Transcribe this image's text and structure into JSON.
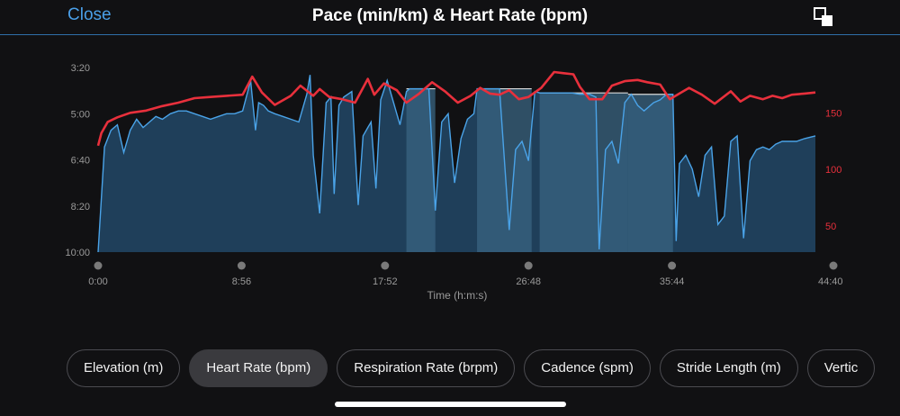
{
  "header": {
    "close_label": "Close",
    "title": "Pace (min/km) & Heart Rate (bpm)"
  },
  "icons": {
    "expand": "expand-icon"
  },
  "colors": {
    "pace_line": "#4aa3e8",
    "pace_fill": "#1f3f5a",
    "hr_line": "#e8303c",
    "interval_band": "#3a6482",
    "background": "#111113"
  },
  "tabs": [
    {
      "label": "Elevation (m)",
      "active": false
    },
    {
      "label": "Heart Rate (bpm)",
      "active": true
    },
    {
      "label": "Respiration Rate (brpm)",
      "active": false
    },
    {
      "label": "Cadence (spm)",
      "active": false
    },
    {
      "label": "Stride Length (m)",
      "active": false
    },
    {
      "label": "Vertic",
      "active": false
    }
  ],
  "chart_data": {
    "type": "area",
    "title": "Pace (min/km) & Heart Rate (bpm)",
    "xlabel": "Time (h:m:s)",
    "x_ticks": [
      "0:00",
      "8:56",
      "17:52",
      "26:48",
      "35:44",
      "44:40"
    ],
    "xlim": [
      0,
      44.67
    ],
    "y_left": {
      "label": "Pace (min/km)",
      "ticks": [
        "3:20",
        "5:00",
        "6:40",
        "8:20",
        "10:00"
      ],
      "range_min": [
        3.333,
        10.0
      ],
      "inverted": true
    },
    "y_right": {
      "label": "Heart Rate (bpm)",
      "ticks": [
        150,
        100,
        50
      ],
      "range": [
        27,
        190
      ]
    },
    "intervals": [
      {
        "start": 19.2,
        "end": 21.0,
        "pace": 4.1
      },
      {
        "start": 23.6,
        "end": 27.0,
        "pace": 4.1
      },
      {
        "start": 27.5,
        "end": 33.0,
        "pace": 4.25
      },
      {
        "start": 33.0,
        "end": 35.8,
        "pace": 4.3
      }
    ],
    "series": [
      {
        "name": "Pace (min/km)",
        "axis": "left",
        "x": [
          0,
          0.4,
          0.8,
          1.2,
          1.6,
          2.0,
          2.4,
          2.8,
          3.2,
          3.6,
          4.0,
          4.5,
          5.0,
          5.5,
          6.0,
          6.5,
          7.0,
          7.5,
          8.0,
          8.5,
          9.0,
          9.5,
          9.8,
          10.0,
          10.3,
          10.6,
          11.0,
          11.5,
          12.0,
          12.5,
          13.0,
          13.2,
          13.4,
          13.8,
          14.2,
          14.5,
          14.7,
          15.0,
          15.3,
          15.8,
          16.2,
          16.5,
          16.8,
          17.0,
          17.3,
          17.6,
          18.0,
          18.4,
          18.8,
          19.2,
          19.4,
          20.0,
          20.6,
          21.0,
          21.4,
          21.8,
          22.2,
          22.6,
          23.0,
          23.4,
          23.6,
          24.0,
          24.5,
          25.0,
          25.6,
          26.0,
          26.4,
          26.8,
          27.2,
          27.5,
          28.0,
          28.5,
          29.0,
          29.5,
          30.0,
          30.6,
          31.0,
          31.2,
          31.6,
          32.0,
          32.4,
          32.8,
          33.2,
          33.6,
          34.0,
          34.6,
          35.0,
          35.4,
          35.8,
          36.0,
          36.2,
          36.6,
          37.0,
          37.4,
          37.8,
          38.2,
          38.6,
          39.0,
          39.4,
          39.8,
          40.2,
          40.6,
          41.0,
          41.4,
          41.8,
          42.2,
          42.6,
          43.0,
          43.5,
          44.0,
          44.67
        ],
        "values": [
          10.0,
          6.2,
          5.6,
          5.4,
          6.4,
          5.6,
          5.2,
          5.5,
          5.3,
          5.1,
          5.2,
          5.0,
          4.9,
          4.9,
          5.0,
          5.1,
          5.2,
          5.1,
          5.0,
          5.0,
          4.9,
          3.8,
          5.6,
          4.6,
          4.7,
          4.9,
          5.0,
          5.1,
          5.2,
          5.3,
          4.3,
          3.6,
          6.5,
          8.6,
          4.6,
          4.4,
          7.9,
          4.7,
          4.4,
          4.2,
          8.3,
          5.8,
          5.5,
          5.3,
          7.7,
          4.5,
          3.8,
          4.6,
          5.4,
          4.2,
          4.1,
          4.1,
          4.1,
          8.5,
          5.3,
          5.0,
          7.5,
          5.9,
          5.2,
          5.0,
          4.1,
          4.1,
          4.1,
          4.1,
          9.2,
          6.3,
          6.0,
          6.7,
          4.2,
          4.25,
          4.25,
          4.25,
          4.25,
          4.25,
          4.3,
          4.3,
          4.4,
          9.9,
          6.3,
          6.0,
          6.8,
          4.6,
          4.3,
          4.7,
          4.9,
          4.6,
          4.5,
          4.3,
          4.3,
          9.6,
          6.8,
          6.5,
          7.0,
          8.0,
          6.5,
          6.2,
          9.0,
          8.7,
          6.0,
          5.8,
          9.5,
          6.7,
          6.3,
          6.2,
          6.3,
          6.1,
          6.0,
          6.0,
          6.0,
          5.9,
          5.8
        ]
      },
      {
        "name": "Heart Rate (bpm)",
        "axis": "right",
        "x": [
          0,
          0.2,
          0.6,
          1.2,
          2.0,
          3.0,
          4.0,
          5.0,
          6.0,
          7.0,
          8.0,
          9.0,
          9.6,
          10.2,
          11.0,
          12.0,
          12.6,
          13.4,
          13.8,
          14.4,
          15.2,
          16.0,
          16.8,
          17.2,
          17.8,
          18.6,
          19.2,
          20.0,
          20.8,
          21.6,
          22.4,
          23.2,
          23.8,
          24.4,
          25.0,
          25.6,
          26.2,
          26.8,
          27.6,
          28.4,
          29.0,
          29.6,
          30.0,
          30.6,
          31.4,
          32.0,
          32.8,
          33.6,
          34.2,
          35.0,
          35.6,
          36.2,
          36.8,
          37.6,
          38.4,
          39.4,
          40.0,
          40.6,
          41.4,
          42.0,
          42.6,
          43.2,
          44.0,
          44.67
        ],
        "values": [
          121,
          132,
          142,
          146,
          150,
          152,
          156,
          159,
          163,
          164,
          165,
          166,
          182,
          168,
          157,
          165,
          174,
          165,
          171,
          164,
          162,
          159,
          180,
          166,
          176,
          170,
          159,
          167,
          177,
          169,
          159,
          165,
          172,
          167,
          166,
          170,
          162,
          164,
          172,
          186,
          185,
          184,
          173,
          162,
          162,
          174,
          178,
          179,
          177,
          175,
          162,
          167,
          172,
          166,
          158,
          169,
          160,
          165,
          162,
          165,
          163,
          166,
          167,
          168
        ]
      }
    ]
  }
}
